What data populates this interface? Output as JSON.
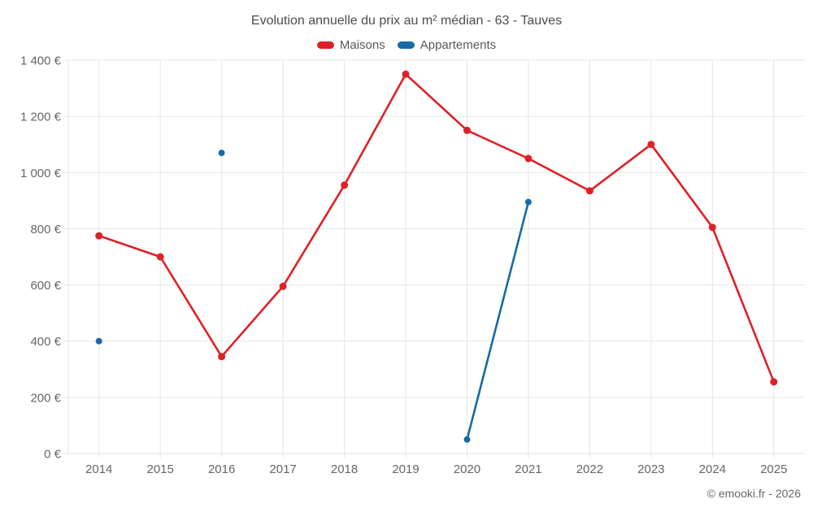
{
  "page": {
    "copyright": "© emooki.fr - 2026"
  },
  "chart_data": {
    "type": "line",
    "title": "Evolution annuelle du prix au m² médian - 63 - Tauves",
    "categories": [
      "2014",
      "2015",
      "2016",
      "2017",
      "2018",
      "2019",
      "2020",
      "2021",
      "2022",
      "2023",
      "2024",
      "2025"
    ],
    "series": [
      {
        "name": "Maisons",
        "color": "#df2027",
        "marker_radius": 4.5,
        "values": [
          775,
          700,
          345,
          595,
          955,
          1350,
          1150,
          1050,
          935,
          1100,
          805,
          255
        ]
      },
      {
        "name": "Appartements",
        "color": "#186aa5",
        "marker_radius": 4,
        "values": [
          400,
          null,
          1070,
          null,
          null,
          null,
          50,
          895,
          null,
          null,
          null,
          null
        ]
      }
    ],
    "y_axis": {
      "min": 0,
      "max": 1400,
      "tick_step": 200,
      "tick_labels": [
        "0 €",
        "200 €",
        "400 €",
        "600 €",
        "800 €",
        "1 000 €",
        "1 200 €",
        "1 400 €"
      ]
    },
    "x_axis": {
      "tick_labels": [
        "2014",
        "2015",
        "2016",
        "2017",
        "2018",
        "2019",
        "2020",
        "2021",
        "2022",
        "2023",
        "2024",
        "2025"
      ]
    },
    "grid": true,
    "legend_position": "top",
    "colors": {
      "grid": "#e6e6e6",
      "axis_line": "#e3e3e3",
      "axis_text": "#666666",
      "title_text": "#4d4d4d",
      "legend_text": "#595959"
    }
  }
}
